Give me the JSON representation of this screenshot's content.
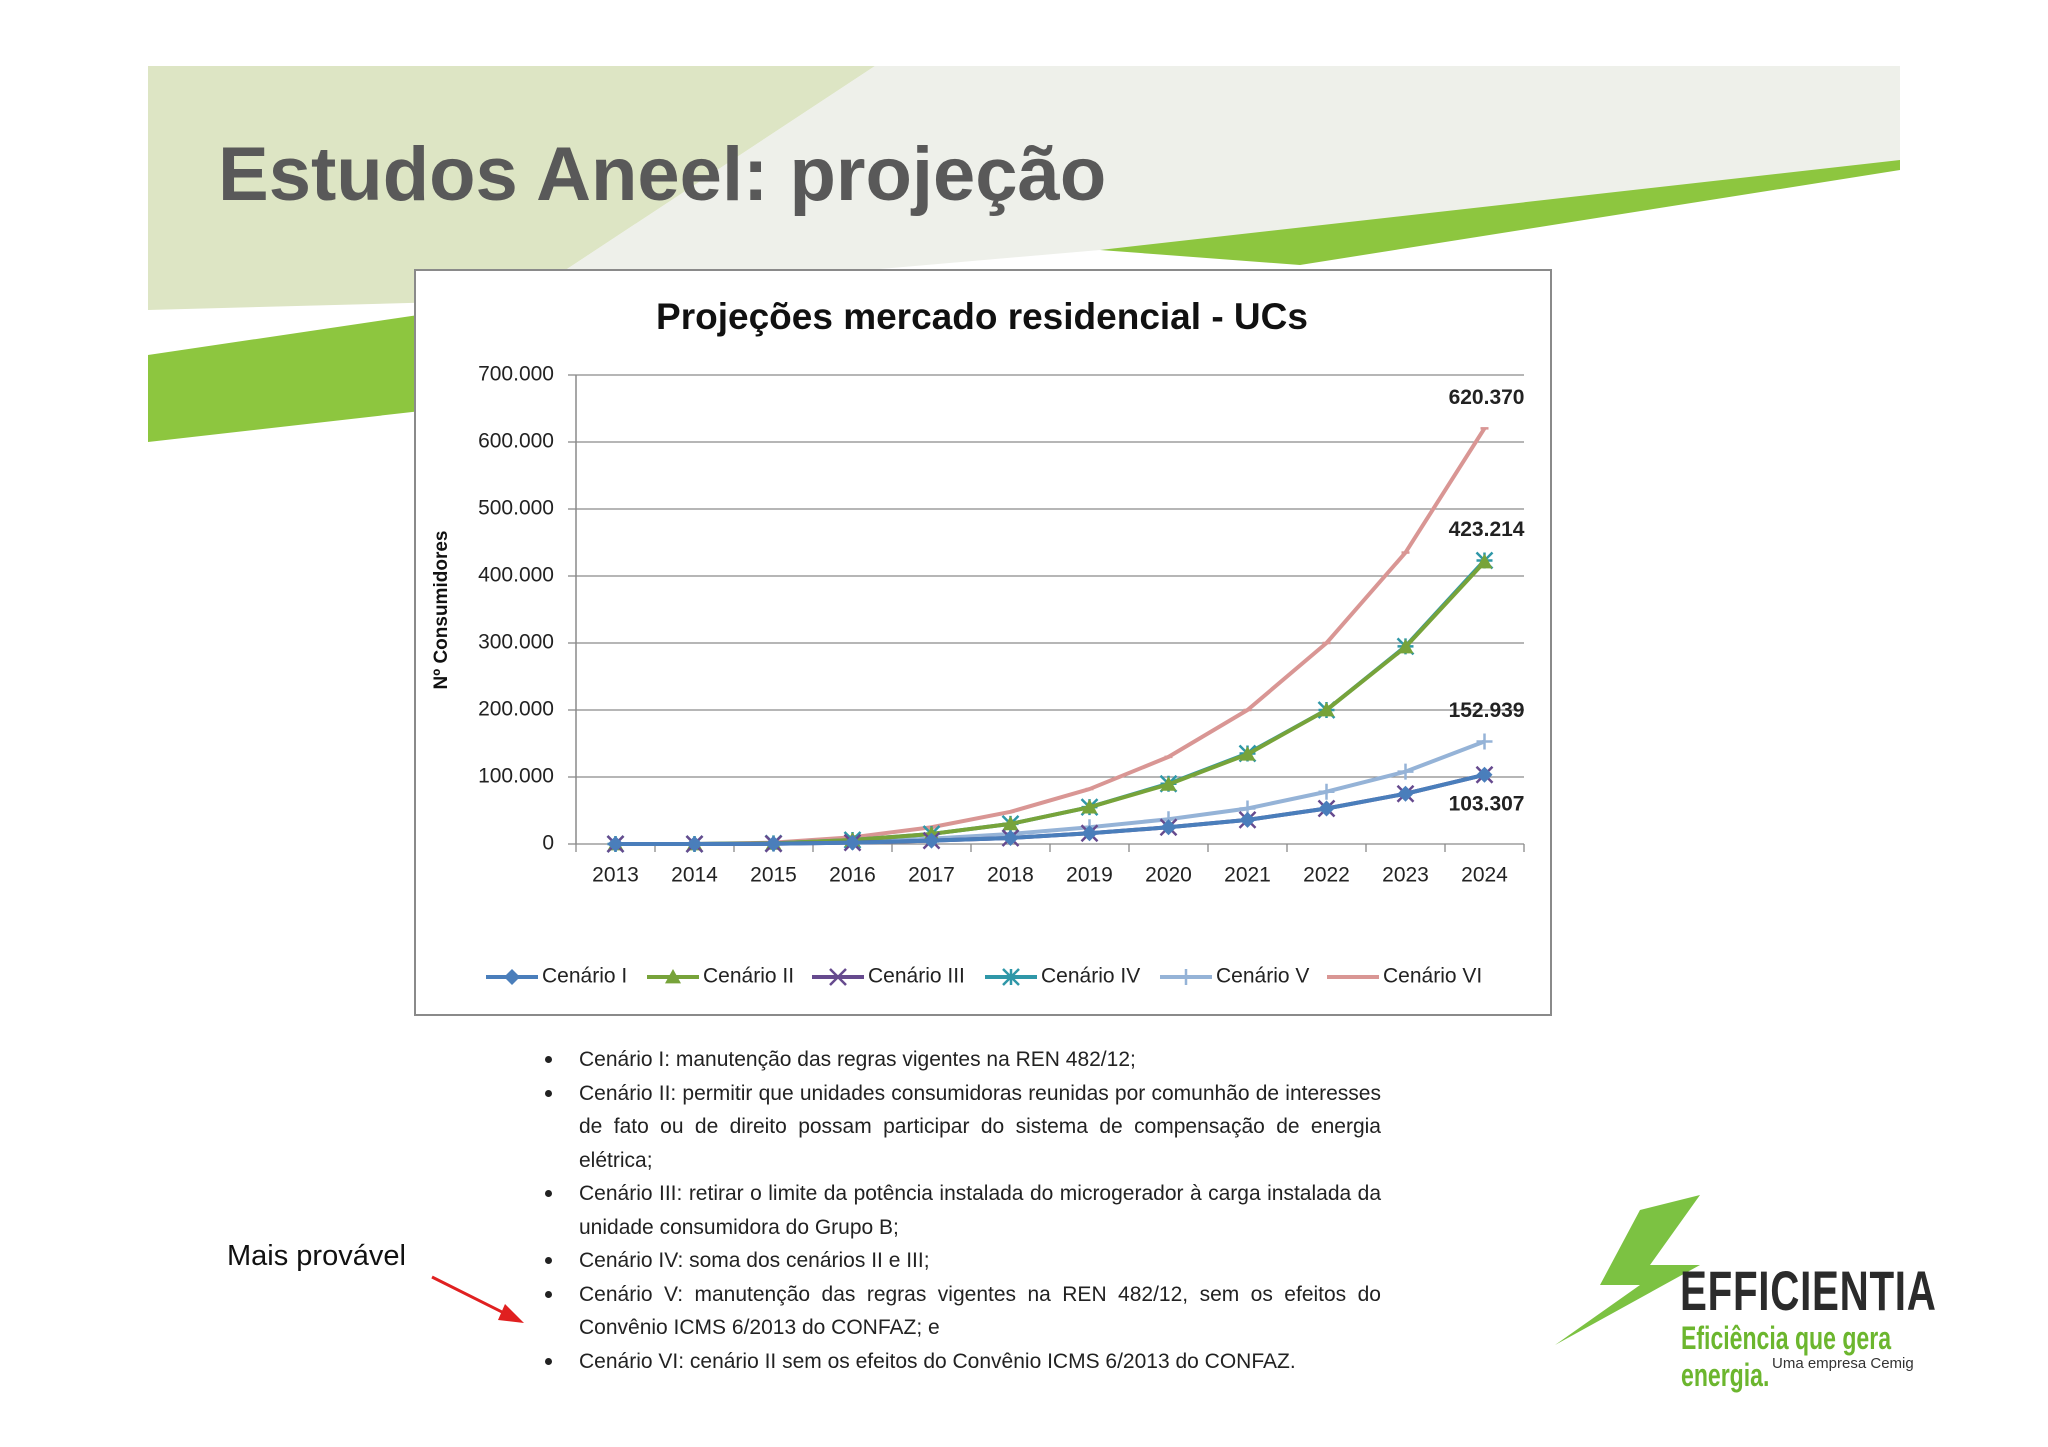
{
  "chart_data": {
    "type": "line",
    "title": "Projeções mercado residencial - UCs",
    "y_label": "Nº Consumidores",
    "categories": [
      "2013",
      "2014",
      "2015",
      "2016",
      "2017",
      "2018",
      "2019",
      "2020",
      "2021",
      "2022",
      "2023",
      "2024"
    ],
    "ylim": [
      0,
      700000
    ],
    "yticks": [
      0,
      {
        "value": 100000,
        "label": "100.000"
      },
      {
        "value": 200000,
        "label": "200.000"
      },
      {
        "value": 300000,
        "label": "300.000"
      },
      {
        "value": 400000,
        "label": "400.000"
      },
      {
        "value": 500000,
        "label": "500.000"
      },
      {
        "value": 600000,
        "label": "600.000"
      },
      {
        "value": 700000,
        "label": "700.000"
      }
    ],
    "grid": true,
    "legend": "bottom",
    "series": [
      {
        "name": "Cenário I",
        "color": "#4a7ebb",
        "marker": "diamond",
        "values": [
          0,
          0,
          300,
          2000,
          5000,
          9000,
          16000,
          25000,
          36000,
          53000,
          75000,
          103307
        ]
      },
      {
        "name": "Cenário II",
        "color": "#77a33a",
        "marker": "triangle",
        "values": [
          0,
          0,
          1000,
          6000,
          15000,
          30000,
          55000,
          89000,
          134000,
          200000,
          294000,
          421000
        ]
      },
      {
        "name": "Cenário III",
        "color": "#664a8e",
        "marker": "x",
        "values": [
          0,
          0,
          300,
          2000,
          5000,
          9000,
          16000,
          25000,
          36000,
          53000,
          75000,
          103307
        ],
        "value_labels": [
          null,
          null,
          null,
          null,
          null,
          null,
          null,
          null,
          null,
          null,
          null,
          "103.307"
        ]
      },
      {
        "name": "Cenário IV",
        "color": "#2f97a8",
        "marker": "star",
        "values": [
          0,
          0,
          1000,
          6000,
          15000,
          30000,
          55000,
          90000,
          135000,
          200000,
          295000,
          423214
        ],
        "value_labels": [
          null,
          null,
          null,
          null,
          null,
          null,
          null,
          null,
          null,
          null,
          null,
          "423.214"
        ]
      },
      {
        "name": "Cenário V",
        "color": "#95b3d7",
        "marker": "plus",
        "values": [
          0,
          0,
          500,
          3000,
          8000,
          15000,
          25000,
          37000,
          53000,
          78000,
          108000,
          152939
        ],
        "value_labels": [
          null,
          null,
          null,
          null,
          null,
          null,
          null,
          null,
          null,
          null,
          null,
          "152.939"
        ]
      },
      {
        "name": "Cenário VI",
        "color": "#d99694",
        "marker": "dash",
        "values": [
          0,
          0,
          2000,
          10000,
          25000,
          48000,
          82000,
          130000,
          200000,
          300000,
          435000,
          620370
        ],
        "value_labels": [
          null,
          null,
          null,
          null,
          null,
          null,
          null,
          null,
          null,
          null,
          null,
          "620.370"
        ]
      }
    ]
  },
  "slide": {
    "title": "Estudos Aneel: projeção",
    "bullets": [
      "Cenário I: manutenção das regras vigentes na REN 482/12;",
      "Cenário II: permitir que unidades consumidoras reunidas por comunhão de interesses de fato ou de direito possam participar do sistema de compensação de energia elétrica;",
      "Cenário III: retirar o limite da potência instalada do microgerador à carga instalada da unidade consumidora do Grupo B;",
      "Cenário IV: soma dos cenários II e III;",
      "Cenário V: manutenção das regras vigentes na REN 482/12, sem os efeitos do Convênio ICMS 6/2013 do CONFAZ; e",
      "Cenário VI: cenário II sem os efeitos do Convênio ICMS 6/2013 do CONFAZ."
    ],
    "note": "Mais provável",
    "logo": {
      "name": "EFFICIENTIA",
      "tagline": "Eficiência que gera energia.",
      "subline": "Uma empresa Cemig"
    }
  }
}
